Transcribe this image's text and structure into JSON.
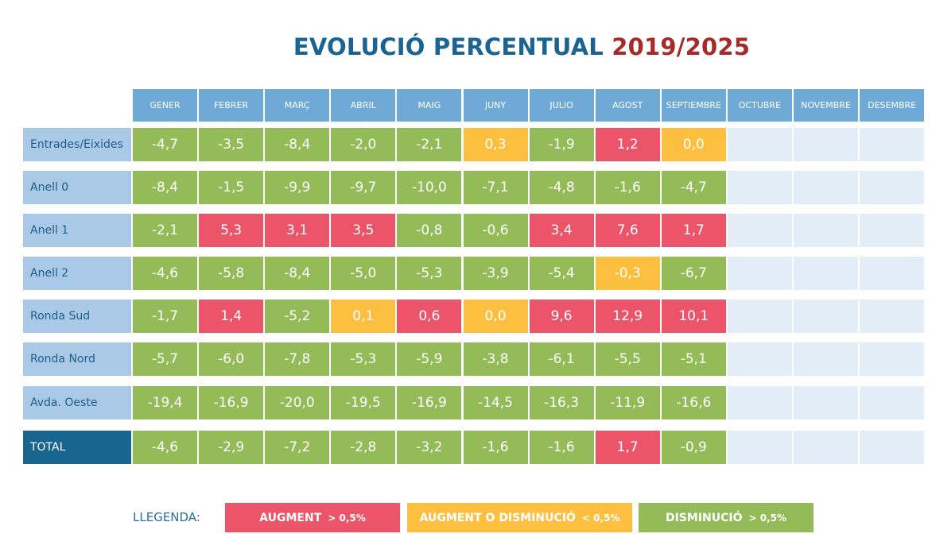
{
  "title": {
    "main": "EVOLUCIÓ PERCENTUAL",
    "years": "2019/2025"
  },
  "colors": {
    "augment": "#ec5469",
    "neutral": "#fcbf40",
    "disminucio": "#93bb57",
    "header": "#6faad6",
    "row_label": "#a9c9e6",
    "total_label": "#186690",
    "empty": "#e3edf8",
    "title_blue": "#1b6391",
    "title_red": "#a52a2a"
  },
  "chart_data": {
    "type": "table",
    "title": "EVOLUCIÓ PERCENTUAL 2019/2025",
    "columns": [
      "GENER",
      "FEBRER",
      "MARÇ",
      "ABRIL",
      "MAIG",
      "JUNY",
      "JULIO",
      "AGOST",
      "SEPTIEMBRE",
      "OCTUBRE",
      "NOVEMBRE",
      "DESEMBRE"
    ],
    "rows": [
      {
        "label": "Entrades/Eixides",
        "values": [
          "-4,7",
          "-3,5",
          "-8,4",
          "-2,0",
          "-2,1",
          "0,3",
          "-1,9",
          "1,2",
          "0,0"
        ],
        "status": [
          "d",
          "d",
          "d",
          "d",
          "d",
          "n",
          "d",
          "a",
          "n"
        ]
      },
      {
        "label": "Anell 0",
        "values": [
          "-8,4",
          "-1,5",
          "-9,9",
          "-9,7",
          "-10,0",
          "-7,1",
          "-4,8",
          "-1,6",
          "-4,7"
        ],
        "status": [
          "d",
          "d",
          "d",
          "d",
          "d",
          "d",
          "d",
          "d",
          "d"
        ]
      },
      {
        "label": "Anell 1",
        "values": [
          "-2,1",
          "5,3",
          "3,1",
          "3,5",
          "-0,8",
          "-0,6",
          "3,4",
          "7,6",
          "1,7"
        ],
        "status": [
          "d",
          "a",
          "a",
          "a",
          "d",
          "d",
          "a",
          "a",
          "a"
        ]
      },
      {
        "label": "Anell 2",
        "values": [
          "-4,6",
          "-5,8",
          "-8,4",
          "-5,0",
          "-5,3",
          "-3,9",
          "-5,4",
          "-0,3",
          "-6,7"
        ],
        "status": [
          "d",
          "d",
          "d",
          "d",
          "d",
          "d",
          "d",
          "n",
          "d"
        ]
      },
      {
        "label": "Ronda Sud",
        "values": [
          "-1,7",
          "1,4",
          "-5,2",
          "0,1",
          "0,6",
          "0,0",
          "9,6",
          "12,9",
          "10,1"
        ],
        "status": [
          "d",
          "a",
          "d",
          "n",
          "a",
          "n",
          "a",
          "a",
          "a"
        ]
      },
      {
        "label": "Ronda Nord",
        "values": [
          "-5,7",
          "-6,0",
          "-7,8",
          "-5,3",
          "-5,9",
          "-3,8",
          "-6,1",
          "-5,5",
          "-5,1"
        ],
        "status": [
          "d",
          "d",
          "d",
          "d",
          "d",
          "d",
          "d",
          "d",
          "d"
        ]
      },
      {
        "label": "Avda. Oeste",
        "values": [
          "-19,4",
          "-16,9",
          "-20,0",
          "-19,5",
          "-16,9",
          "-14,5",
          "-16,3",
          "-11,9",
          "-16,6"
        ],
        "status": [
          "d",
          "d",
          "d",
          "d",
          "d",
          "d",
          "d",
          "d",
          "d"
        ]
      },
      {
        "label": "TOTAL",
        "values": [
          "-4,6",
          "-2,9",
          "-7,2",
          "-2,8",
          "-3,2",
          "-1,6",
          "-1,6",
          "1,7",
          "-0,9"
        ],
        "status": [
          "d",
          "d",
          "d",
          "d",
          "d",
          "d",
          "d",
          "a",
          "d"
        ],
        "is_total": true
      }
    ]
  },
  "legend": {
    "label": "LLEGENDA:",
    "items": [
      {
        "key": "a",
        "text": "AUGMENT",
        "threshold": "> 0,5%"
      },
      {
        "key": "n",
        "text": "AUGMENT O DISMINUCIÓ",
        "threshold": "< 0,5%"
      },
      {
        "key": "d",
        "text": "DISMINUCIÓ",
        "threshold": "> 0,5%"
      }
    ]
  }
}
